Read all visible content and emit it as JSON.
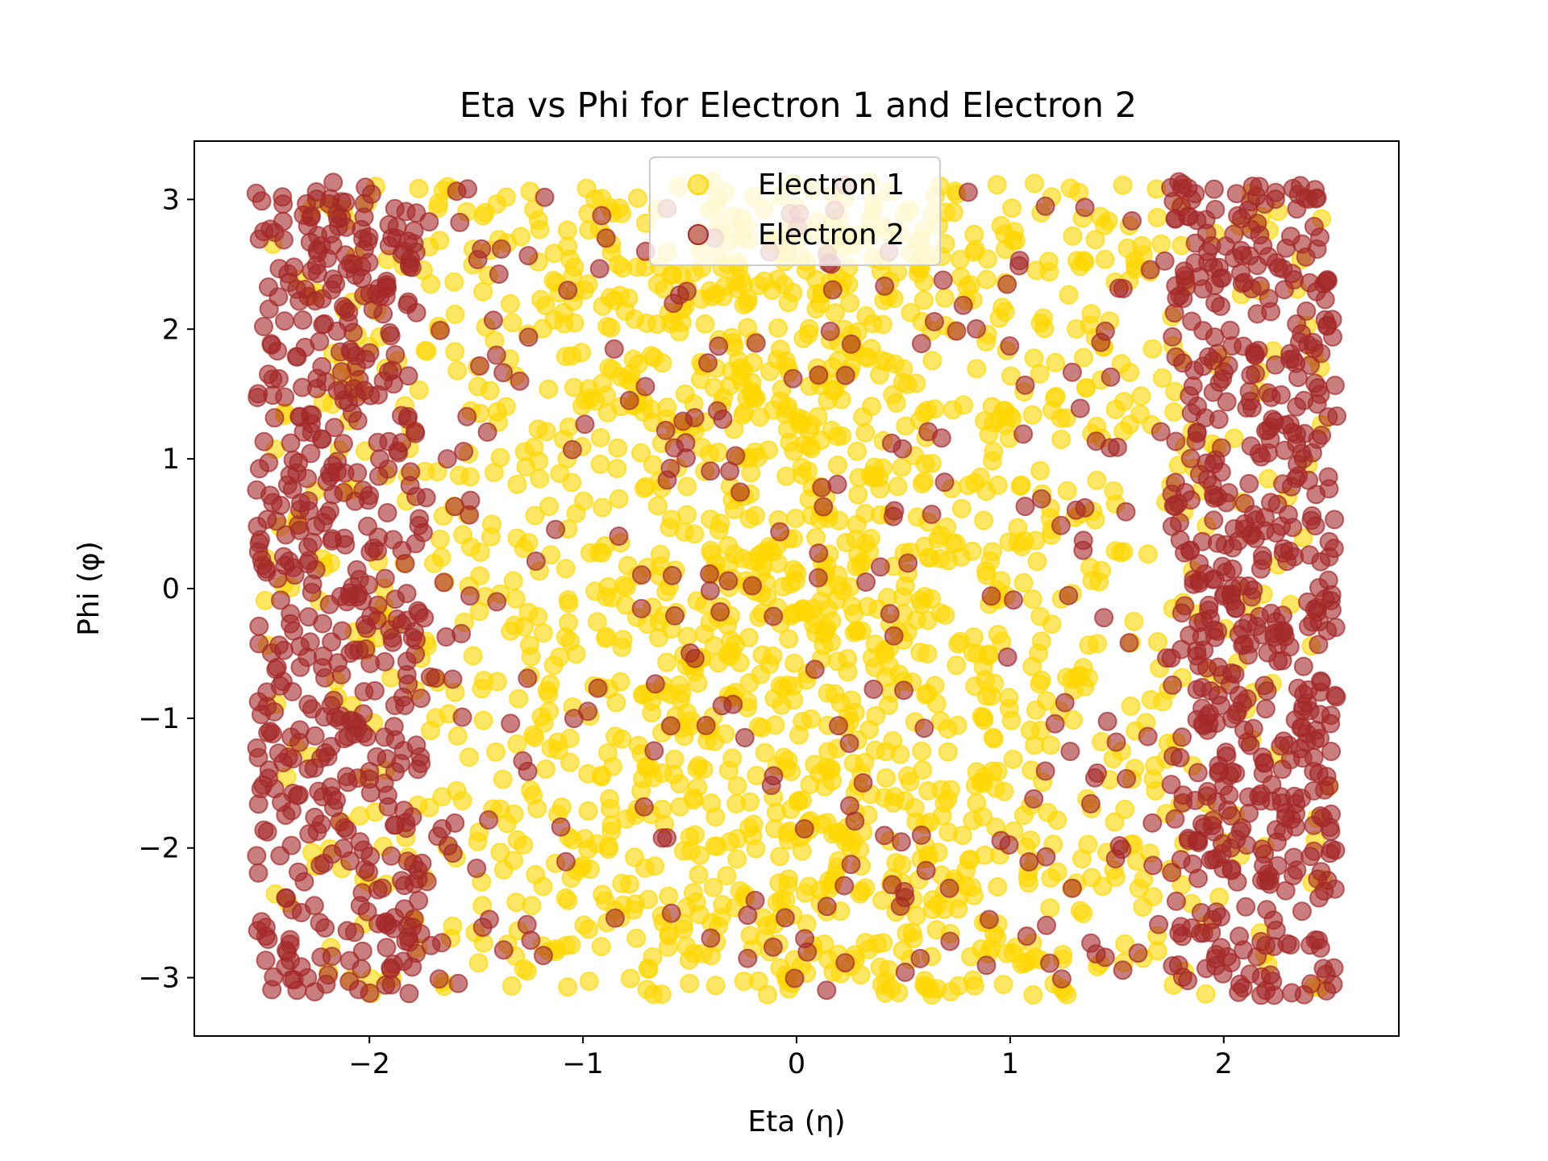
{
  "chart_data": {
    "type": "scatter",
    "title": "Eta vs Phi for Electron 1 and Electron 2",
    "xlabel": "Eta (η)",
    "ylabel": "Phi (φ)",
    "xlim": [
      -2.82,
      2.82
    ],
    "ylim": [
      -3.45,
      3.45
    ],
    "x_ticks": [
      -2,
      -1,
      0,
      1,
      2
    ],
    "x_tick_labels": [
      "−2",
      "−1",
      "0",
      "1",
      "2"
    ],
    "y_ticks": [
      -3,
      -2,
      -1,
      0,
      1,
      2,
      3
    ],
    "y_tick_labels": [
      "−3",
      "−2",
      "−1",
      "0",
      "1",
      "2",
      "3"
    ],
    "grid": false,
    "legend_position": "upper center",
    "series": [
      {
        "name": "Electron 1",
        "color": "#ffd700",
        "alpha": 0.6,
        "distribution": "uniform-ish coverage, denser toward the center",
        "eta_range": [
          -2.5,
          2.5
        ],
        "phi_range": [
          -3.14,
          3.14
        ],
        "approx_count": 1800,
        "seed": 11
      },
      {
        "name": "Electron 2",
        "color": "#a52a2a",
        "alpha": 0.6,
        "distribution": "concentrated at |eta| 1.8–2.5, sparser in the center",
        "eta_range": [
          -2.5,
          2.5
        ],
        "phi_range": [
          -3.14,
          3.14
        ],
        "approx_count": 1400,
        "seed": 29
      }
    ]
  }
}
